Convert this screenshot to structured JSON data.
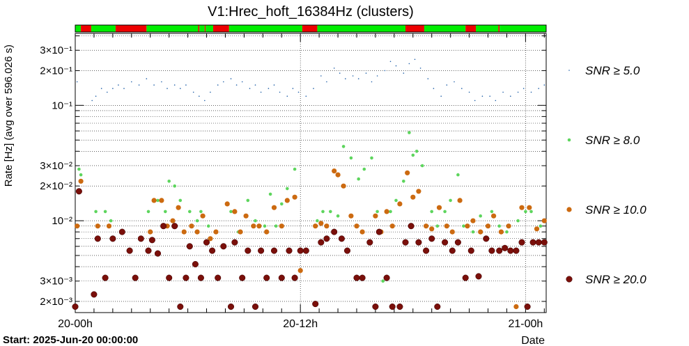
{
  "chart_data": {
    "type": "scatter",
    "title": "V1:Hrec_hoft_16384Hz (clusters)",
    "ylabel": "Rate [Hz] (avg over 596.026 s)",
    "xlabel": "Date",
    "start_label": "Start: 2025-Jun-20 00:00:00",
    "x_unit": "hours since start",
    "xlim": [
      0,
      25.1
    ],
    "ylim": [
      0.0016,
      0.42
    ],
    "log_y": true,
    "x_ticks": [
      {
        "x": 0,
        "label": "20-00h"
      },
      {
        "x": 12,
        "label": "20-12h"
      },
      {
        "x": 24,
        "label": "21-00h"
      }
    ],
    "y_ticks": [
      {
        "y": 0.002,
        "label": "2×10⁻³"
      },
      {
        "y": 0.003,
        "label": "3×10⁻³"
      },
      {
        "y": 0.01,
        "label": "10⁻²"
      },
      {
        "y": 0.02,
        "label": "2×10⁻²"
      },
      {
        "y": 0.03,
        "label": "3×10⁻²"
      },
      {
        "y": 0.1,
        "label": "10⁻¹"
      },
      {
        "y": 0.2,
        "label": "2×10⁻¹"
      },
      {
        "y": 0.3,
        "label": "3×10⁻¹"
      }
    ],
    "grid": true,
    "legend_position": "right",
    "state_bar": [
      {
        "from": 0.0,
        "to": 0.3,
        "state": "ok"
      },
      {
        "from": 0.3,
        "to": 0.85,
        "state": "bad"
      },
      {
        "from": 0.85,
        "to": 2.15,
        "state": "ok"
      },
      {
        "from": 2.15,
        "to": 3.8,
        "state": "bad"
      },
      {
        "from": 3.8,
        "to": 6.55,
        "state": "ok"
      },
      {
        "from": 6.55,
        "to": 6.62,
        "state": "bad"
      },
      {
        "from": 6.62,
        "to": 6.9,
        "state": "ok"
      },
      {
        "from": 6.9,
        "to": 6.95,
        "state": "bad"
      },
      {
        "from": 6.95,
        "to": 7.35,
        "state": "ok"
      },
      {
        "from": 7.35,
        "to": 8.2,
        "state": "bad"
      },
      {
        "from": 8.2,
        "to": 12.1,
        "state": "ok"
      },
      {
        "from": 12.1,
        "to": 12.9,
        "state": "bad"
      },
      {
        "from": 12.9,
        "to": 17.6,
        "state": "ok"
      },
      {
        "from": 17.6,
        "to": 18.6,
        "state": "bad"
      },
      {
        "from": 18.6,
        "to": 20.8,
        "state": "ok"
      },
      {
        "from": 20.8,
        "to": 21.35,
        "state": "bad"
      },
      {
        "from": 21.35,
        "to": 22.55,
        "state": "ok"
      },
      {
        "from": 22.55,
        "to": 22.62,
        "state": "bad"
      },
      {
        "from": 22.62,
        "to": 25.1,
        "state": "ok"
      }
    ],
    "series": [
      {
        "name": "SNR ≥ 5.0",
        "color": "#1f5fa8",
        "marker": "tiny",
        "points": [
          [
            0.1,
            0.16
          ],
          [
            0.9,
            0.11
          ],
          [
            1.1,
            0.12
          ],
          [
            1.4,
            0.14
          ],
          [
            1.7,
            0.13
          ],
          [
            2.0,
            0.14
          ],
          [
            2.3,
            0.15
          ],
          [
            2.6,
            0.14
          ],
          [
            3.0,
            0.16
          ],
          [
            3.4,
            0.15
          ],
          [
            3.8,
            0.17
          ],
          [
            4.2,
            0.15
          ],
          [
            4.6,
            0.16
          ],
          [
            4.9,
            0.14
          ],
          [
            5.3,
            0.15
          ],
          [
            5.6,
            0.14
          ],
          [
            5.9,
            0.15
          ],
          [
            6.3,
            0.13
          ],
          [
            6.6,
            0.12
          ],
          [
            6.9,
            0.11
          ],
          [
            7.2,
            0.13
          ],
          [
            7.6,
            0.15
          ],
          [
            7.9,
            0.16
          ],
          [
            8.3,
            0.17
          ],
          [
            8.6,
            0.15
          ],
          [
            8.9,
            0.16
          ],
          [
            9.3,
            0.14
          ],
          [
            9.6,
            0.15
          ],
          [
            9.9,
            0.13
          ],
          [
            10.3,
            0.14
          ],
          [
            10.6,
            0.15
          ],
          [
            10.9,
            0.13
          ],
          [
            11.3,
            0.12
          ],
          [
            11.6,
            0.14
          ],
          [
            11.9,
            0.13
          ],
          [
            12.3,
            0.12
          ],
          [
            12.7,
            0.14
          ],
          [
            13.1,
            0.18
          ],
          [
            13.4,
            0.16
          ],
          [
            13.8,
            0.21
          ],
          [
            14.1,
            0.19
          ],
          [
            14.4,
            0.17
          ],
          [
            14.8,
            0.18
          ],
          [
            15.1,
            0.17
          ],
          [
            15.5,
            0.19
          ],
          [
            15.8,
            0.16
          ],
          [
            16.1,
            0.18
          ],
          [
            16.5,
            0.2
          ],
          [
            16.8,
            0.24
          ],
          [
            17.1,
            0.22
          ],
          [
            17.5,
            0.19
          ],
          [
            17.8,
            0.23
          ],
          [
            18.1,
            0.25
          ],
          [
            18.4,
            0.21
          ],
          [
            18.8,
            0.17
          ],
          [
            19.1,
            0.14
          ],
          [
            19.5,
            0.12
          ],
          [
            19.8,
            0.15
          ],
          [
            20.2,
            0.16
          ],
          [
            20.6,
            0.14
          ],
          [
            21.0,
            0.13
          ],
          [
            21.3,
            0.11
          ],
          [
            21.7,
            0.12
          ],
          [
            22.1,
            0.12
          ],
          [
            22.4,
            0.11
          ],
          [
            22.8,
            0.13
          ],
          [
            23.2,
            0.12
          ],
          [
            23.6,
            0.13
          ],
          [
            23.9,
            0.14
          ],
          [
            24.3,
            0.13
          ],
          [
            24.7,
            0.14
          ],
          [
            25.0,
            0.15
          ]
        ]
      },
      {
        "name": "SNR ≥ 8.0",
        "color": "#5dd55d",
        "marker": "small",
        "points": [
          [
            0.2,
            0.028
          ],
          [
            0.3,
            0.025
          ],
          [
            1.1,
            0.012
          ],
          [
            1.6,
            0.012
          ],
          [
            1.9,
            0.01
          ],
          [
            3.9,
            0.012
          ],
          [
            4.4,
            0.015
          ],
          [
            4.8,
            0.012
          ],
          [
            5.0,
            0.022
          ],
          [
            5.3,
            0.02
          ],
          [
            5.6,
            0.015
          ],
          [
            6.1,
            0.012
          ],
          [
            6.5,
            0.01
          ],
          [
            6.7,
            0.012
          ],
          [
            7.1,
            0.009
          ],
          [
            8.3,
            0.012
          ],
          [
            8.7,
            0.008
          ],
          [
            9.2,
            0.015
          ],
          [
            9.6,
            0.01
          ],
          [
            10.1,
            0.009
          ],
          [
            10.4,
            0.017
          ],
          [
            10.7,
            0.009
          ],
          [
            11.0,
            0.014
          ],
          [
            11.3,
            0.019
          ],
          [
            11.7,
            0.028
          ],
          [
            12.9,
            0.01
          ],
          [
            13.2,
            0.012
          ],
          [
            13.6,
            0.012
          ],
          [
            14.0,
            0.011
          ],
          [
            14.3,
            0.044
          ],
          [
            14.7,
            0.035
          ],
          [
            15.1,
            0.023
          ],
          [
            15.4,
            0.028
          ],
          [
            15.8,
            0.035
          ],
          [
            16.1,
            0.012
          ],
          [
            16.4,
            0.003
          ],
          [
            16.8,
            0.012
          ],
          [
            17.1,
            0.015
          ],
          [
            17.5,
            0.022
          ],
          [
            17.8,
            0.058
          ],
          [
            18.0,
            0.037
          ],
          [
            18.2,
            0.04
          ],
          [
            18.5,
            0.03
          ],
          [
            19.0,
            0.012
          ],
          [
            19.3,
            0.009
          ],
          [
            19.7,
            0.012
          ],
          [
            20.0,
            0.015
          ],
          [
            20.4,
            0.025
          ],
          [
            20.7,
            0.009
          ],
          [
            21.2,
            0.008
          ],
          [
            21.6,
            0.011
          ],
          [
            22.2,
            0.012
          ],
          [
            22.6,
            0.009
          ],
          [
            23.0,
            0.008
          ],
          [
            23.6,
            0.01
          ],
          [
            24.0,
            0.012
          ],
          [
            24.3,
            0.012
          ],
          [
            24.8,
            0.009
          ],
          [
            25.0,
            0.01
          ]
        ]
      },
      {
        "name": "SNR ≥ 10.0",
        "color": "#cc6a10",
        "marker": "medium",
        "points": [
          [
            0.1,
            0.009
          ],
          [
            0.3,
            0.022
          ],
          [
            1.2,
            0.009
          ],
          [
            1.8,
            0.009
          ],
          [
            4.0,
            0.008
          ],
          [
            4.2,
            0.015
          ],
          [
            4.6,
            0.015
          ],
          [
            4.9,
            0.009
          ],
          [
            5.2,
            0.01
          ],
          [
            5.5,
            0.013
          ],
          [
            5.8,
            0.008
          ],
          [
            6.2,
            0.009
          ],
          [
            6.5,
            0.008
          ],
          [
            6.8,
            0.011
          ],
          [
            7.2,
            0.007
          ],
          [
            7.5,
            0.008
          ],
          [
            8.1,
            0.014
          ],
          [
            8.5,
            0.012
          ],
          [
            8.8,
            0.008
          ],
          [
            9.1,
            0.011
          ],
          [
            9.5,
            0.009
          ],
          [
            9.8,
            0.009
          ],
          [
            10.2,
            0.008
          ],
          [
            10.6,
            0.013
          ],
          [
            11.0,
            0.009
          ],
          [
            11.3,
            0.015
          ],
          [
            11.7,
            0.016
          ],
          [
            12.0,
            0.0037
          ],
          [
            12.8,
            0.009
          ],
          [
            13.1,
            0.0095
          ],
          [
            13.4,
            0.009
          ],
          [
            13.8,
            0.027
          ],
          [
            14.0,
            0.025
          ],
          [
            14.3,
            0.02
          ],
          [
            14.7,
            0.011
          ],
          [
            15.0,
            0.009
          ],
          [
            15.3,
            0.008
          ],
          [
            15.7,
            0.0065
          ],
          [
            16.0,
            0.011
          ],
          [
            16.3,
            0.008
          ],
          [
            16.6,
            0.012
          ],
          [
            16.9,
            0.009
          ],
          [
            17.3,
            0.014
          ],
          [
            17.7,
            0.026
          ],
          [
            18.0,
            0.016
          ],
          [
            18.3,
            0.018
          ],
          [
            18.7,
            0.009
          ],
          [
            19.0,
            0.0085
          ],
          [
            19.4,
            0.013
          ],
          [
            19.8,
            0.009
          ],
          [
            20.1,
            0.008
          ],
          [
            20.5,
            0.015
          ],
          [
            20.9,
            0.009
          ],
          [
            21.2,
            0.01
          ],
          [
            21.6,
            0.008
          ],
          [
            22.0,
            0.009
          ],
          [
            22.3,
            0.011
          ],
          [
            22.7,
            0.008
          ],
          [
            23.1,
            0.009
          ],
          [
            23.5,
            0.0018
          ],
          [
            23.8,
            0.013
          ],
          [
            24.2,
            0.013
          ],
          [
            24.6,
            0.0085
          ],
          [
            25.0,
            0.01
          ]
        ]
      },
      {
        "name": "SNR ≥ 20.0",
        "color": "#7a0f0a",
        "marker": "large",
        "points": [
          [
            0.0,
            0.0018
          ],
          [
            0.2,
            0.018
          ],
          [
            1.0,
            0.0023
          ],
          [
            1.2,
            0.007
          ],
          [
            1.6,
            0.0032
          ],
          [
            2.0,
            0.007
          ],
          [
            2.5,
            0.008
          ],
          [
            2.9,
            0.0055
          ],
          [
            3.2,
            0.0032
          ],
          [
            3.5,
            0.007
          ],
          [
            3.9,
            0.0055
          ],
          [
            4.1,
            0.0068
          ],
          [
            4.4,
            0.0052
          ],
          [
            4.7,
            0.009
          ],
          [
            5.0,
            0.0032
          ],
          [
            5.3,
            0.009
          ],
          [
            5.6,
            0.0018
          ],
          [
            5.9,
            0.0032
          ],
          [
            6.1,
            0.006
          ],
          [
            6.4,
            0.0042
          ],
          [
            6.7,
            0.0032
          ],
          [
            7.0,
            0.0065
          ],
          [
            7.3,
            0.0055
          ],
          [
            7.6,
            0.0032
          ],
          [
            7.9,
            0.006
          ],
          [
            8.3,
            0.0018
          ],
          [
            8.5,
            0.0065
          ],
          [
            8.9,
            0.0032
          ],
          [
            9.2,
            0.0055
          ],
          [
            9.6,
            0.0018
          ],
          [
            9.9,
            0.0055
          ],
          [
            10.2,
            0.0032
          ],
          [
            10.6,
            0.0055
          ],
          [
            11.0,
            0.0032
          ],
          [
            11.4,
            0.0055
          ],
          [
            11.7,
            0.0032
          ],
          [
            12.0,
            0.0055
          ],
          [
            12.3,
            0.0055
          ],
          [
            12.8,
            0.0019
          ],
          [
            13.1,
            0.0065
          ],
          [
            13.4,
            0.007
          ],
          [
            13.8,
            0.008
          ],
          [
            14.2,
            0.007
          ],
          [
            14.5,
            0.0055
          ],
          [
            15.0,
            0.0032
          ],
          [
            15.3,
            0.0032
          ],
          [
            15.7,
            0.0065
          ],
          [
            16.0,
            0.0018
          ],
          [
            16.2,
            0.008
          ],
          [
            16.6,
            0.0032
          ],
          [
            16.9,
            0.0018
          ],
          [
            17.3,
            0.0018
          ],
          [
            17.6,
            0.0065
          ],
          [
            17.9,
            0.009
          ],
          [
            18.3,
            0.0065
          ],
          [
            18.7,
            0.0055
          ],
          [
            19.0,
            0.007
          ],
          [
            19.3,
            0.0018
          ],
          [
            19.7,
            0.0065
          ],
          [
            20.1,
            0.0055
          ],
          [
            20.4,
            0.0065
          ],
          [
            20.8,
            0.0032
          ],
          [
            21.1,
            0.0055
          ],
          [
            21.5,
            0.0033
          ],
          [
            21.9,
            0.007
          ],
          [
            22.2,
            0.0055
          ],
          [
            22.6,
            0.0055
          ],
          [
            22.9,
            0.0058
          ],
          [
            23.2,
            0.0055
          ],
          [
            23.5,
            0.0055
          ],
          [
            23.8,
            0.0065
          ],
          [
            24.1,
            0.0018
          ],
          [
            24.4,
            0.0065
          ],
          [
            24.7,
            0.0065
          ],
          [
            25.0,
            0.0065
          ]
        ]
      }
    ]
  }
}
